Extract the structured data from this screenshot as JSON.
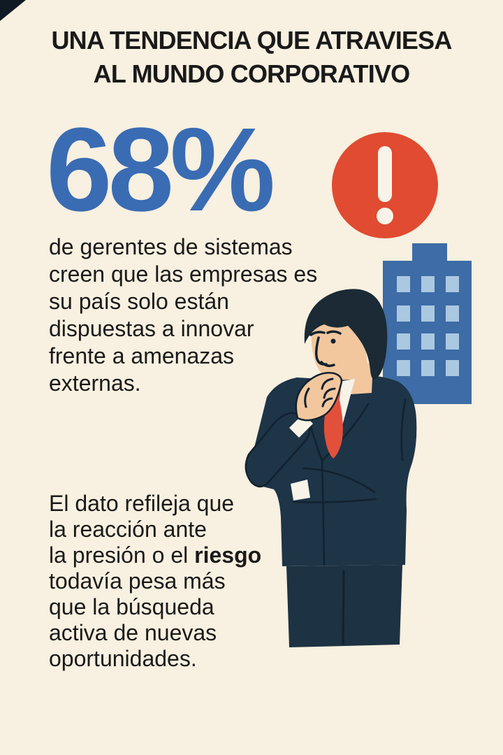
{
  "title": {
    "line1": "UNA TENDENCIA QUE ATRAVIESA",
    "line2": "AL MUNDO CORPORATIVO"
  },
  "stat": {
    "value": "68%"
  },
  "paragraph1": {
    "lines": [
      "de gerentes de sistemas",
      "creen que las empresas es",
      "su país solo están",
      "dispuestas a innovar",
      "frente a amenazas",
      "externas."
    ]
  },
  "paragraph2": {
    "lines": [
      [
        {
          "t": "El dato refileja que",
          "b": false
        }
      ],
      [
        {
          "t": "la reacción ante",
          "b": false
        }
      ],
      [
        {
          "t": "la presión o el ",
          "b": false
        },
        {
          "t": "riesgo",
          "b": true
        }
      ],
      [
        {
          "t": "todavía pesa más",
          "b": false
        }
      ],
      [
        {
          "t": "que la búsqueda",
          "b": false
        }
      ],
      [
        {
          "t": "activa de nuevas",
          "b": false
        }
      ],
      [
        {
          "t": "oportunidades.",
          "b": false
        }
      ]
    ]
  },
  "icons": {
    "alert": "exclamation-icon",
    "building": "office-building-illustration",
    "person": "thinking-businessman-illustration"
  },
  "colors": {
    "background": "#f8f0e0",
    "text": "#1a1a1a",
    "accent_blue": "#3a6cb3",
    "alert_red": "#e04b31",
    "building_blue": "#3d6ca6",
    "window_blue": "#abc8e1",
    "suit_navy": "#1e3447",
    "suit_line": "#12222f",
    "trouser_navy": "#1d3242",
    "skin": "#f2c79e",
    "hair": "#1b2a34",
    "shirt_white": "#f7f3e8",
    "tie_red": "#e2503b",
    "corner_dark": "#0f1a24"
  }
}
